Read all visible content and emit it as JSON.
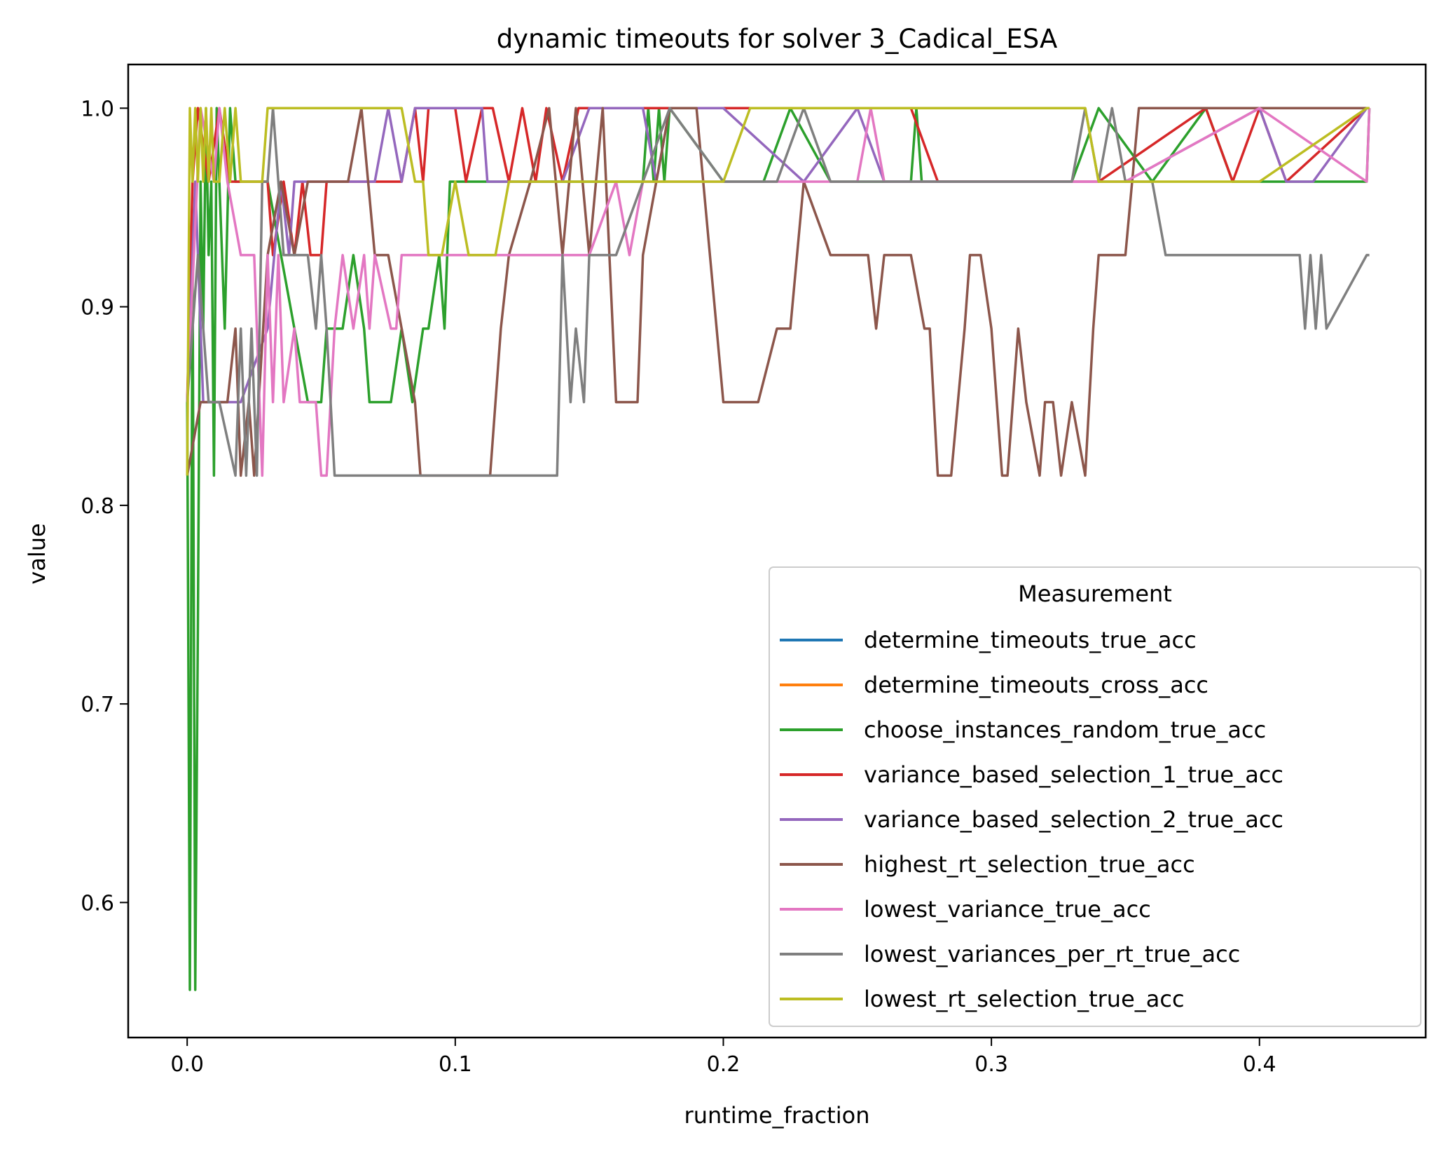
{
  "chart_data": {
    "type": "line",
    "title": "dynamic timeouts for solver 3_Cadical_ESA",
    "xlabel": "runtime_fraction",
    "ylabel": "value",
    "xlim": [
      -0.022,
      0.462
    ],
    "ylim": [
      0.532,
      1.022
    ],
    "xticks": [
      0.0,
      0.1,
      0.2,
      0.3,
      0.4
    ],
    "xtick_labels": [
      "0.0",
      "0.1",
      "0.2",
      "0.3",
      "0.4"
    ],
    "yticks": [
      0.6,
      0.7,
      0.8,
      0.9,
      1.0
    ],
    "ytick_labels": [
      "0.6",
      "0.7",
      "0.8",
      "0.9",
      "1.0"
    ],
    "grid": false,
    "legend": {
      "title": "Measurement",
      "placement": "lower-right"
    },
    "series": [
      {
        "name": "determine_timeouts_true_acc",
        "color": "#1f77b4",
        "x": [],
        "y": []
      },
      {
        "name": "determine_timeouts_cross_acc",
        "color": "#ff7f0e",
        "x": [],
        "y": []
      },
      {
        "name": "choose_instances_random_true_acc",
        "color": "#2ca02c",
        "x": [
          0.0,
          0.001,
          0.002,
          0.003,
          0.004,
          0.005,
          0.006,
          0.007,
          0.008,
          0.009,
          0.01,
          0.011,
          0.012,
          0.014,
          0.016,
          0.018,
          0.02,
          0.022,
          0.024,
          0.03,
          0.035,
          0.04,
          0.045,
          0.05,
          0.052,
          0.058,
          0.062,
          0.066,
          0.068,
          0.072,
          0.076,
          0.08,
          0.084,
          0.088,
          0.09,
          0.094,
          0.096,
          0.098,
          0.1,
          0.104,
          0.11,
          0.17,
          0.172,
          0.174,
          0.176,
          0.178,
          0.18,
          0.2,
          0.215,
          0.225,
          0.24,
          0.27,
          0.272,
          0.274,
          0.28,
          0.3,
          0.33,
          0.34,
          0.36,
          0.38,
          0.39,
          0.4,
          0.42,
          0.44,
          0.441
        ],
        "y": [
          0.852,
          0.556,
          0.926,
          0.556,
          0.741,
          0.963,
          0.889,
          1.0,
          0.926,
          0.963,
          0.815,
          1.0,
          0.963,
          0.889,
          1.0,
          0.963,
          0.963,
          0.963,
          0.963,
          0.963,
          0.926,
          0.889,
          0.852,
          0.852,
          0.889,
          0.889,
          0.926,
          0.889,
          0.852,
          0.852,
          0.852,
          0.889,
          0.852,
          0.889,
          0.889,
          0.926,
          0.889,
          0.963,
          0.963,
          0.963,
          0.963,
          0.963,
          1.0,
          0.963,
          1.0,
          0.963,
          1.0,
          0.963,
          0.963,
          1.0,
          0.963,
          0.963,
          1.0,
          0.963,
          0.963,
          0.963,
          0.963,
          1.0,
          0.963,
          1.0,
          0.963,
          0.963,
          0.963,
          0.963,
          1.0
        ]
      },
      {
        "name": "variance_based_selection_1_true_acc",
        "color": "#d62728",
        "x": [
          0.0,
          0.002,
          0.004,
          0.008,
          0.012,
          0.016,
          0.02,
          0.024,
          0.028,
          0.03,
          0.032,
          0.036,
          0.04,
          0.043,
          0.046,
          0.05,
          0.052,
          0.054,
          0.06,
          0.07,
          0.08,
          0.085,
          0.088,
          0.09,
          0.1,
          0.104,
          0.11,
          0.114,
          0.12,
          0.125,
          0.13,
          0.134,
          0.14,
          0.146,
          0.15,
          0.16,
          0.17,
          0.2,
          0.24,
          0.25,
          0.27,
          0.28,
          0.3,
          0.34,
          0.38,
          0.39,
          0.4,
          0.41,
          0.44,
          0.441
        ],
        "y": [
          0.852,
          0.963,
          1.0,
          0.963,
          1.0,
          0.963,
          0.963,
          0.963,
          0.963,
          0.963,
          0.926,
          0.963,
          0.926,
          0.963,
          0.926,
          0.926,
          0.963,
          0.963,
          0.963,
          0.963,
          0.963,
          1.0,
          0.963,
          1.0,
          1.0,
          0.963,
          1.0,
          1.0,
          0.963,
          1.0,
          0.963,
          1.0,
          0.963,
          1.0,
          1.0,
          1.0,
          1.0,
          1.0,
          1.0,
          1.0,
          1.0,
          0.963,
          0.963,
          0.963,
          1.0,
          0.963,
          1.0,
          0.963,
          1.0,
          1.0
        ]
      },
      {
        "name": "variance_based_selection_2_true_acc",
        "color": "#9467bd",
        "x": [
          0.0,
          0.003,
          0.006,
          0.009,
          0.012,
          0.02,
          0.03,
          0.035,
          0.038,
          0.04,
          0.045,
          0.05,
          0.06,
          0.07,
          0.075,
          0.08,
          0.085,
          0.09,
          0.1,
          0.11,
          0.112,
          0.115,
          0.14,
          0.15,
          0.155,
          0.17,
          0.175,
          0.18,
          0.19,
          0.2,
          0.23,
          0.25,
          0.26,
          0.3,
          0.35,
          0.4,
          0.41,
          0.42,
          0.44,
          0.441
        ],
        "y": [
          0.852,
          0.963,
          0.852,
          0.852,
          0.852,
          0.852,
          0.889,
          0.963,
          0.926,
          0.963,
          0.963,
          0.963,
          0.963,
          0.963,
          1.0,
          0.963,
          1.0,
          1.0,
          1.0,
          1.0,
          0.963,
          0.963,
          0.963,
          1.0,
          1.0,
          1.0,
          0.963,
          1.0,
          1.0,
          1.0,
          0.963,
          1.0,
          0.963,
          0.963,
          0.963,
          1.0,
          0.963,
          0.963,
          1.0,
          1.0
        ]
      },
      {
        "name": "highest_rt_selection_true_acc",
        "color": "#8c564b",
        "x": [
          0.0,
          0.005,
          0.01,
          0.015,
          0.018,
          0.02,
          0.023,
          0.025,
          0.03,
          0.035,
          0.04,
          0.045,
          0.05,
          0.06,
          0.065,
          0.07,
          0.075,
          0.08,
          0.085,
          0.087,
          0.1,
          0.113,
          0.117,
          0.12,
          0.128,
          0.135,
          0.14,
          0.145,
          0.15,
          0.155,
          0.16,
          0.168,
          0.17,
          0.18,
          0.19,
          0.19,
          0.2,
          0.213,
          0.22,
          0.225,
          0.23,
          0.24,
          0.254,
          0.257,
          0.26,
          0.266,
          0.27,
          0.275,
          0.277,
          0.28,
          0.285,
          0.29,
          0.292,
          0.296,
          0.3,
          0.304,
          0.306,
          0.31,
          0.313,
          0.318,
          0.32,
          0.323,
          0.326,
          0.33,
          0.335,
          0.338,
          0.34,
          0.35,
          0.355,
          0.36,
          0.37,
          0.375,
          0.4,
          0.41,
          0.44,
          0.441
        ],
        "y": [
          0.815,
          0.852,
          0.852,
          0.852,
          0.889,
          0.815,
          0.852,
          0.815,
          0.926,
          0.963,
          0.926,
          0.963,
          0.963,
          0.963,
          1.0,
          0.926,
          0.926,
          0.889,
          0.852,
          0.815,
          0.815,
          0.815,
          0.889,
          0.926,
          0.963,
          1.0,
          0.926,
          1.0,
          0.926,
          1.0,
          0.852,
          0.852,
          0.926,
          1.0,
          1.0,
          1.0,
          0.852,
          0.852,
          0.889,
          0.889,
          0.963,
          0.926,
          0.926,
          0.889,
          0.926,
          0.926,
          0.926,
          0.889,
          0.889,
          0.815,
          0.815,
          0.889,
          0.926,
          0.926,
          0.889,
          0.815,
          0.815,
          0.889,
          0.852,
          0.815,
          0.852,
          0.852,
          0.815,
          0.852,
          0.815,
          0.889,
          0.926,
          0.926,
          1.0,
          1.0,
          1.0,
          1.0,
          1.0,
          1.0,
          1.0,
          1.0
        ]
      },
      {
        "name": "lowest_variance_true_acc",
        "color": "#e377c2",
        "x": [
          0.0,
          0.005,
          0.01,
          0.012,
          0.015,
          0.02,
          0.025,
          0.028,
          0.03,
          0.032,
          0.034,
          0.036,
          0.04,
          0.042,
          0.044,
          0.046,
          0.048,
          0.05,
          0.052,
          0.055,
          0.058,
          0.062,
          0.066,
          0.068,
          0.07,
          0.076,
          0.078,
          0.08,
          0.1,
          0.12,
          0.15,
          0.16,
          0.165,
          0.17,
          0.2,
          0.25,
          0.255,
          0.26,
          0.3,
          0.35,
          0.4,
          0.44,
          0.441
        ],
        "y": [
          0.852,
          1.0,
          0.963,
          1.0,
          0.963,
          0.926,
          0.926,
          0.815,
          0.926,
          0.852,
          0.926,
          0.852,
          0.889,
          0.852,
          0.852,
          0.852,
          0.852,
          0.815,
          0.815,
          0.889,
          0.926,
          0.889,
          0.926,
          0.889,
          0.926,
          0.889,
          0.889,
          0.926,
          0.926,
          0.926,
          0.926,
          0.963,
          0.926,
          0.963,
          0.963,
          0.963,
          1.0,
          0.963,
          0.963,
          0.963,
          1.0,
          0.963,
          1.0
        ]
      },
      {
        "name": "lowest_variances_per_rt_true_acc",
        "color": "#7f7f7f",
        "x": [
          0.0,
          0.004,
          0.008,
          0.012,
          0.018,
          0.02,
          0.022,
          0.024,
          0.026,
          0.028,
          0.03,
          0.032,
          0.034,
          0.036,
          0.04,
          0.045,
          0.048,
          0.05,
          0.052,
          0.055,
          0.06,
          0.1,
          0.13,
          0.138,
          0.14,
          0.143,
          0.145,
          0.148,
          0.15,
          0.16,
          0.17,
          0.18,
          0.2,
          0.22,
          0.23,
          0.24,
          0.3,
          0.33,
          0.335,
          0.34,
          0.345,
          0.35,
          0.36,
          0.365,
          0.37,
          0.38,
          0.4,
          0.415,
          0.417,
          0.419,
          0.421,
          0.423,
          0.425,
          0.44,
          0.441
        ],
        "y": [
          0.852,
          0.926,
          0.852,
          0.852,
          0.815,
          0.889,
          0.815,
          0.889,
          0.815,
          0.963,
          0.963,
          1.0,
          0.963,
          0.926,
          0.926,
          0.926,
          0.889,
          0.926,
          0.889,
          0.815,
          0.815,
          0.815,
          0.815,
          0.815,
          0.926,
          0.852,
          0.889,
          0.852,
          0.926,
          0.926,
          0.963,
          1.0,
          0.963,
          0.963,
          1.0,
          0.963,
          0.963,
          0.963,
          1.0,
          0.963,
          1.0,
          0.963,
          0.963,
          0.926,
          0.926,
          0.926,
          0.926,
          0.926,
          0.889,
          0.926,
          0.889,
          0.926,
          0.889,
          0.926,
          0.926
        ]
      },
      {
        "name": "lowest_rt_selection_true_acc",
        "color": "#bcbd22",
        "x": [
          0.0,
          0.001,
          0.002,
          0.003,
          0.004,
          0.005,
          0.006,
          0.007,
          0.008,
          0.009,
          0.01,
          0.012,
          0.014,
          0.016,
          0.018,
          0.02,
          0.022,
          0.024,
          0.026,
          0.028,
          0.03,
          0.05,
          0.07,
          0.08,
          0.085,
          0.088,
          0.09,
          0.095,
          0.1,
          0.105,
          0.11,
          0.115,
          0.12,
          0.2,
          0.21,
          0.25,
          0.3,
          0.335,
          0.34,
          0.38,
          0.4,
          0.44,
          0.441
        ],
        "y": [
          0.815,
          1.0,
          0.963,
          1.0,
          0.963,
          1.0,
          0.963,
          1.0,
          0.963,
          1.0,
          0.963,
          0.963,
          1.0,
          0.963,
          1.0,
          0.963,
          0.963,
          0.963,
          0.963,
          0.963,
          1.0,
          1.0,
          1.0,
          1.0,
          0.963,
          0.963,
          0.926,
          0.926,
          0.963,
          0.926,
          0.926,
          0.926,
          0.963,
          0.963,
          1.0,
          1.0,
          1.0,
          1.0,
          0.963,
          0.963,
          0.963,
          1.0,
          1.0
        ]
      }
    ]
  }
}
